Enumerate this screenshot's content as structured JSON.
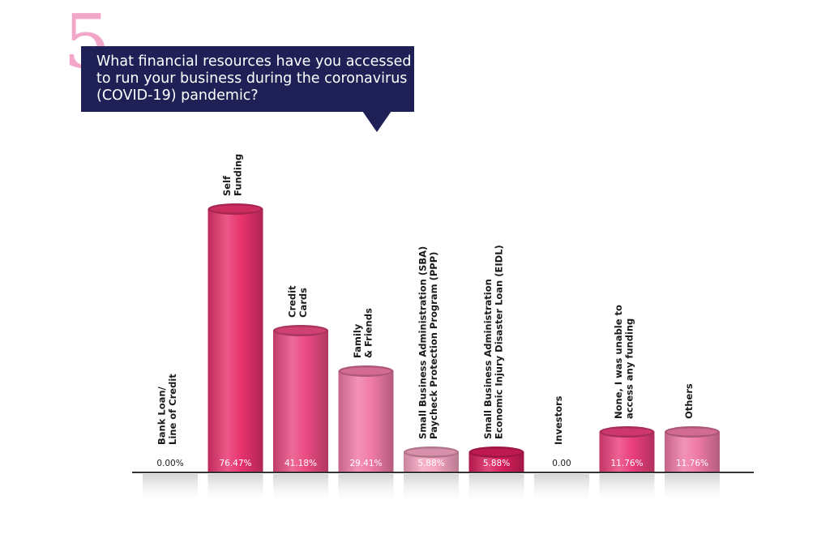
{
  "question": {
    "number": "5",
    "text": "What financial resources have you accessed to run your business during the coronavirus (COVID-19) pandemic?"
  },
  "colors": {
    "title_box": "#1f2156",
    "number": "#f2a6c8",
    "axis": "#333333"
  },
  "chart_data": {
    "type": "bar",
    "categories": [
      [
        "Bank Loan/",
        "Line of Credit"
      ],
      [
        "Self",
        "Funding"
      ],
      [
        "Credit",
        "Cards"
      ],
      [
        "Family",
        "& Friends"
      ],
      [
        "Small Business Administration (SBA)",
        "Paycheck Protection Program (PPP)"
      ],
      [
        "Small Business Administration",
        "Economic Injury Disaster Loan (EIDL)"
      ],
      [
        "Investors"
      ],
      [
        "None, I was unable to",
        "access any funding"
      ],
      [
        "Others"
      ]
    ],
    "values": [
      0.0,
      76.47,
      41.18,
      29.41,
      5.88,
      5.88,
      0.0,
      11.76,
      11.76
    ],
    "value_labels": [
      "0.00%",
      "76.47%",
      "41.18%",
      "29.41%",
      "5.88%",
      "5.88%",
      "0.00",
      "11.76%",
      "11.76%"
    ],
    "bar_colors": [
      "#e8e8e8",
      "#e8336e",
      "#ea4a82",
      "#f07aa6",
      "#f5a3c1",
      "#d81e5b",
      "#e8e8e8",
      "#ea3f7c",
      "#ee7aa6"
    ],
    "unit": "%",
    "ylim": [
      0,
      76.47
    ],
    "grid": false,
    "legend": "none"
  }
}
